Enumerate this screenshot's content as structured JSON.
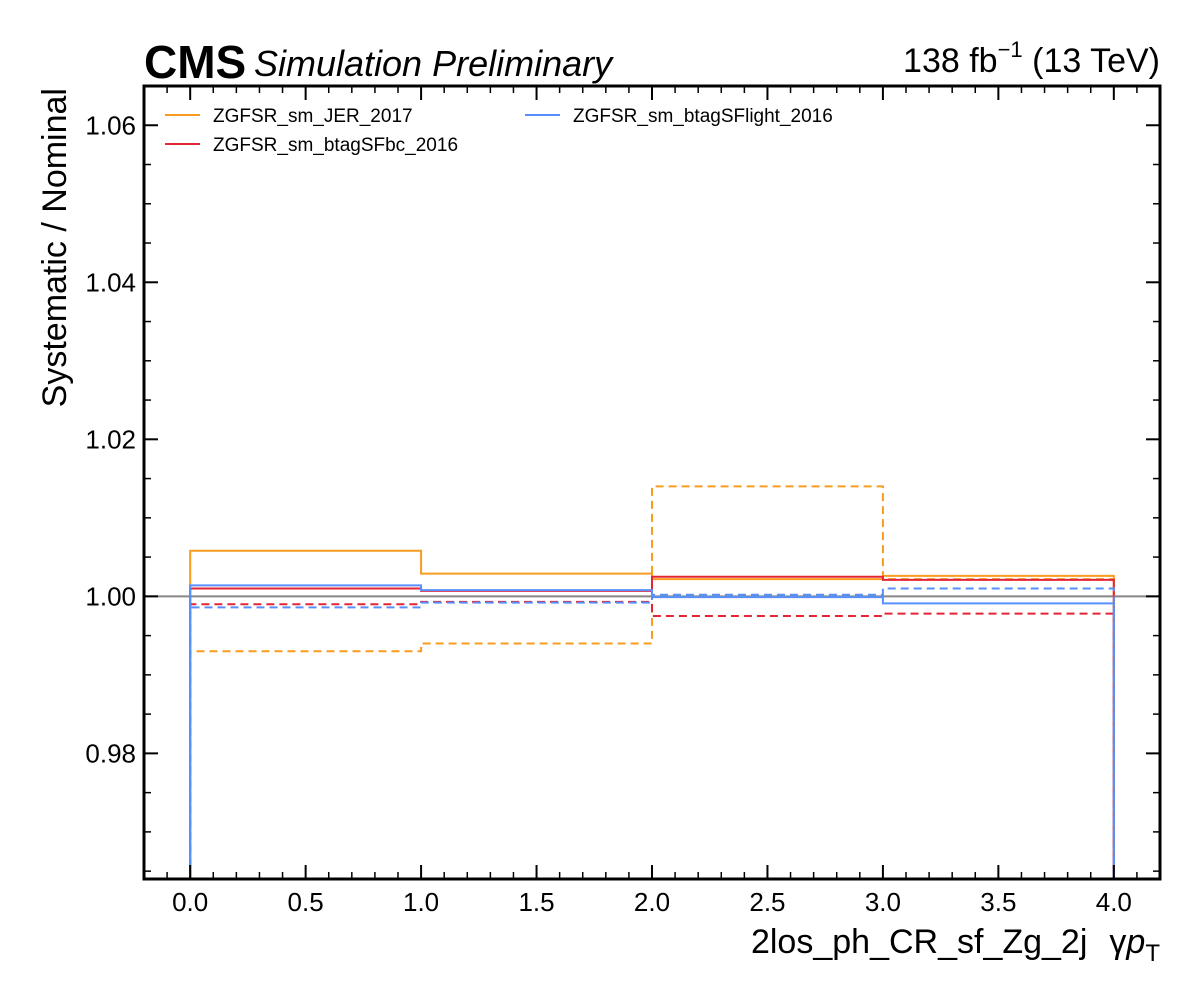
{
  "header": {
    "cms": "CMS",
    "status": "Simulation Preliminary",
    "lumi_value": "138 fb",
    "lumi_exp": "−1",
    "lumi_energy": " (13 TeV)"
  },
  "chart_data": {
    "type": "line",
    "step": true,
    "xlabel": "2los_ph_CR_sf_Zg_2j",
    "xlabel_suffix_gamma": "γ",
    "xlabel_suffix_p": "p",
    "xlabel_suffix_sub": "T",
    "ylabel": "Systematic / Nominal",
    "xlim": [
      -0.2,
      4.2
    ],
    "ylim": [
      0.964,
      1.065
    ],
    "xticks": [
      0.0,
      0.5,
      1.0,
      1.5,
      2.0,
      2.5,
      3.0,
      3.5,
      4.0
    ],
    "xtick_labels": [
      "0.0",
      "0.5",
      "1.0",
      "1.5",
      "2.0",
      "2.5",
      "3.0",
      "3.5",
      "4.0"
    ],
    "yticks": [
      0.98,
      1.0,
      1.02,
      1.04,
      1.06
    ],
    "ytick_labels": [
      "0.98",
      "1.00",
      "1.02",
      "1.04",
      "1.06"
    ],
    "bin_edges": [
      0,
      1,
      2,
      3,
      4
    ],
    "reference_line": 1.0,
    "reference_color": "#888888",
    "legend_placement": "top-left, two columns",
    "series": [
      {
        "name": "ZGFSR_sm_JER_2017",
        "color": "#f89c20",
        "up": [
          1.0058,
          1.0029,
          1.0022,
          1.0026
        ],
        "down": [
          0.993,
          0.994,
          1.014,
          1.0022
        ]
      },
      {
        "name": "ZGFSR_sm_btagSFbc_2016",
        "color": "#e42536",
        "up": [
          1.001,
          1.0007,
          1.0025,
          1.0021
        ],
        "down": [
          0.999,
          0.9993,
          0.9975,
          0.9978
        ]
      },
      {
        "name": "ZGFSR_sm_btagSFlight_2016",
        "color": "#5790fc",
        "up": [
          1.0014,
          1.0008,
          0.9999,
          0.9991
        ],
        "down": [
          0.9986,
          0.9992,
          1.0002,
          1.001
        ]
      }
    ]
  }
}
